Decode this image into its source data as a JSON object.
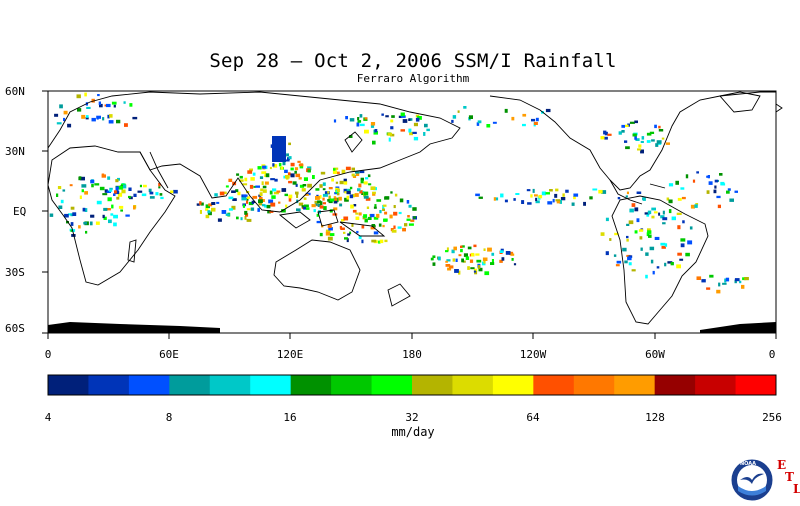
{
  "title": "Sep 28 – Oct 2, 2006 SSM/I Rainfall",
  "subtitle": "Ferraro Algorithm",
  "map": {
    "lat_labels": [
      "60N",
      "30N",
      "EQ",
      "30S",
      "60S"
    ],
    "lon_labels": [
      "0",
      "60E",
      "120E",
      "180",
      "120W",
      "60W",
      "0"
    ]
  },
  "colorbar": {
    "colors": [
      "#00207a",
      "#0034b8",
      "#0050ff",
      "#009c9c",
      "#00c8c8",
      "#00ffff",
      "#009100",
      "#00c800",
      "#00ff00",
      "#b4b400",
      "#dcdc00",
      "#ffff00",
      "#ff5000",
      "#ff7800",
      "#ff9c00",
      "#960000",
      "#c80000",
      "#ff0000"
    ],
    "tick_labels": [
      "4",
      "8",
      "16",
      "32",
      "64",
      "128",
      "256"
    ],
    "units": "mm/day"
  },
  "logo": {
    "text": "NOAA",
    "side_letters": [
      "E",
      "T",
      "L"
    ]
  }
}
